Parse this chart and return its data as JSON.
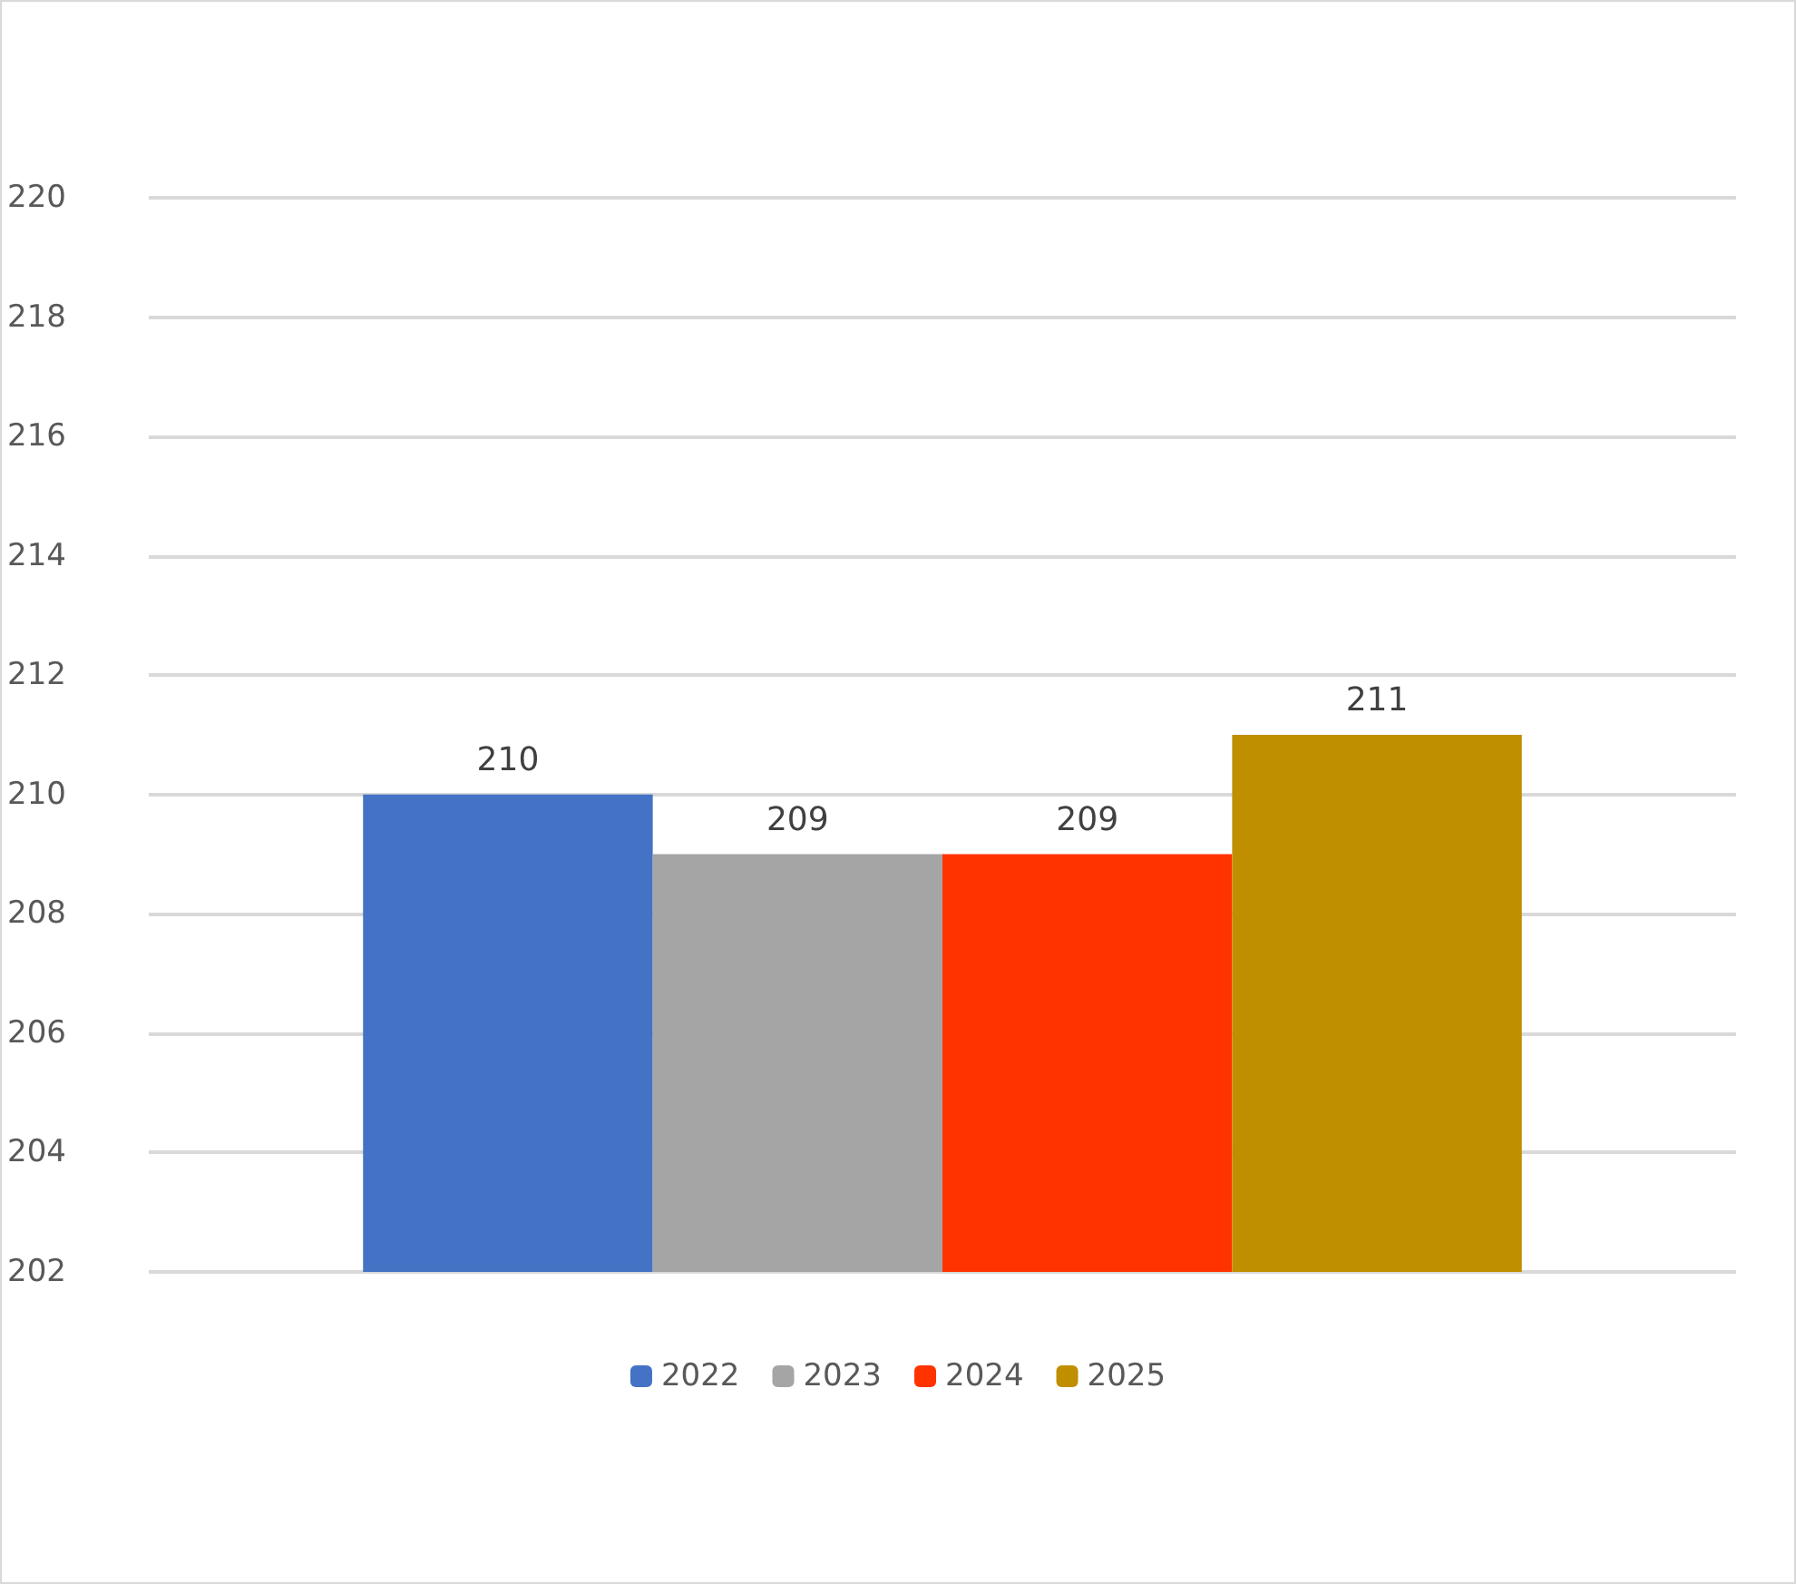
{
  "chart_data": {
    "type": "bar",
    "categories": [
      null
    ],
    "series": [
      {
        "name": "2022",
        "color": "#4472c4",
        "values": [
          210
        ]
      },
      {
        "name": "2023",
        "color": "#a5a5a5",
        "values": [
          209
        ]
      },
      {
        "name": "2024",
        "color": "#ff3300",
        "values": [
          209
        ]
      },
      {
        "name": "2025",
        "color": "#bf8f00",
        "values": [
          211
        ]
      }
    ],
    "ylim": [
      202,
      220
    ],
    "yticks": [
      202,
      204,
      206,
      208,
      210,
      212,
      214,
      216,
      218,
      220
    ],
    "grid": "y",
    "legend": "bottom",
    "data_labels": true
  }
}
